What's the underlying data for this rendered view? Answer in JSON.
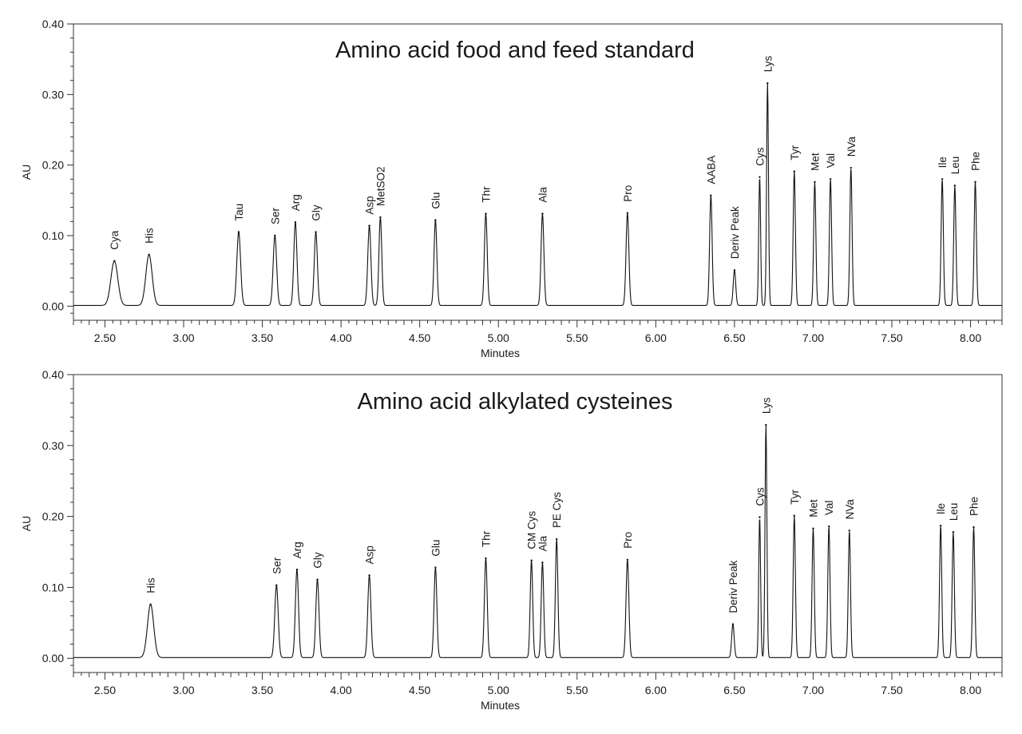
{
  "chart_data": [
    {
      "type": "line",
      "title": "Amino acid food and feed standard",
      "xlabel": "Minutes",
      "ylabel": "AU",
      "xlim": [
        2.3,
        8.2
      ],
      "ylim": [
        -0.02,
        0.4
      ],
      "xticks": [
        2.5,
        3.0,
        3.5,
        4.0,
        4.5,
        5.0,
        5.5,
        6.0,
        6.5,
        7.0,
        7.5,
        8.0
      ],
      "xtick_labels": [
        "2.50",
        "3.00",
        "3.50",
        "4.00",
        "4.50",
        "5.00",
        "5.50",
        "6.00",
        "6.50",
        "7.00",
        "7.50",
        "8.00"
      ],
      "yticks": [
        0.0,
        0.1,
        0.2,
        0.3,
        0.4
      ],
      "ytick_labels": [
        "0.00",
        "0.10",
        "0.20",
        "0.30",
        "0.40"
      ],
      "baseline": 0.001,
      "grid": false,
      "peaks": [
        {
          "name": "Cya",
          "x": 2.56,
          "y": 0.063,
          "w": 0.022
        },
        {
          "name": "His",
          "x": 2.78,
          "y": 0.072,
          "w": 0.02
        },
        {
          "name": "Tau",
          "x": 3.35,
          "y": 0.104,
          "w": 0.012
        },
        {
          "name": "Ser",
          "x": 3.58,
          "y": 0.099,
          "w": 0.011
        },
        {
          "name": "Arg",
          "x": 3.71,
          "y": 0.118,
          "w": 0.01
        },
        {
          "name": "Gly",
          "x": 3.84,
          "y": 0.104,
          "w": 0.01
        },
        {
          "name": "Asp",
          "x": 4.18,
          "y": 0.113,
          "w": 0.01
        },
        {
          "name": "MetSO2",
          "x": 4.25,
          "y": 0.125,
          "w": 0.009
        },
        {
          "name": "Glu",
          "x": 4.6,
          "y": 0.121,
          "w": 0.009
        },
        {
          "name": "Thr",
          "x": 4.92,
          "y": 0.13,
          "w": 0.009
        },
        {
          "name": "Ala",
          "x": 5.28,
          "y": 0.13,
          "w": 0.009
        },
        {
          "name": "Pro",
          "x": 5.82,
          "y": 0.131,
          "w": 0.009
        },
        {
          "name": "AABA",
          "x": 6.35,
          "y": 0.156,
          "w": 0.008
        },
        {
          "name": "Deriv Peak",
          "x": 6.5,
          "y": 0.05,
          "w": 0.008
        },
        {
          "name": "Cys",
          "x": 6.66,
          "y": 0.182,
          "w": 0.006
        },
        {
          "name": "Lys",
          "x": 6.71,
          "y": 0.315,
          "w": 0.006
        },
        {
          "name": "Tyr",
          "x": 6.88,
          "y": 0.19,
          "w": 0.007
        },
        {
          "name": "Met",
          "x": 7.01,
          "y": 0.175,
          "w": 0.007
        },
        {
          "name": "Val",
          "x": 7.11,
          "y": 0.179,
          "w": 0.007
        },
        {
          "name": "NVa",
          "x": 7.24,
          "y": 0.195,
          "w": 0.007
        },
        {
          "name": "Ile",
          "x": 7.82,
          "y": 0.179,
          "w": 0.007
        },
        {
          "name": "Leu",
          "x": 7.9,
          "y": 0.17,
          "w": 0.007
        },
        {
          "name": "Phe",
          "x": 8.03,
          "y": 0.175,
          "w": 0.007
        }
      ]
    },
    {
      "type": "line",
      "title": "Amino acid alkylated cysteines",
      "xlabel": "Minutes",
      "ylabel": "AU",
      "xlim": [
        2.3,
        8.2
      ],
      "ylim": [
        -0.02,
        0.4
      ],
      "xticks": [
        2.5,
        3.0,
        3.5,
        4.0,
        4.5,
        5.0,
        5.5,
        6.0,
        6.5,
        7.0,
        7.5,
        8.0
      ],
      "xtick_labels": [
        "2.50",
        "3.00",
        "3.50",
        "4.00",
        "4.50",
        "5.00",
        "5.50",
        "6.00",
        "6.50",
        "7.00",
        "7.50",
        "8.00"
      ],
      "yticks": [
        0.0,
        0.1,
        0.2,
        0.3,
        0.4
      ],
      "ytick_labels": [
        "0.00",
        "0.10",
        "0.20",
        "0.30",
        "0.40"
      ],
      "baseline": 0.001,
      "grid": false,
      "peaks": [
        {
          "name": "His",
          "x": 2.79,
          "y": 0.075,
          "w": 0.02
        },
        {
          "name": "Ser",
          "x": 3.59,
          "y": 0.102,
          "w": 0.011
        },
        {
          "name": "Arg",
          "x": 3.72,
          "y": 0.124,
          "w": 0.01
        },
        {
          "name": "Gly",
          "x": 3.85,
          "y": 0.11,
          "w": 0.01
        },
        {
          "name": "Asp",
          "x": 4.18,
          "y": 0.116,
          "w": 0.01
        },
        {
          "name": "Glu",
          "x": 4.6,
          "y": 0.127,
          "w": 0.009
        },
        {
          "name": "Thr",
          "x": 4.92,
          "y": 0.14,
          "w": 0.009
        },
        {
          "name": "CM Cys",
          "x": 5.21,
          "y": 0.137,
          "w": 0.008
        },
        {
          "name": "Ala",
          "x": 5.28,
          "y": 0.134,
          "w": 0.008
        },
        {
          "name": "PE Cys",
          "x": 5.37,
          "y": 0.167,
          "w": 0.008
        },
        {
          "name": "Pro",
          "x": 5.82,
          "y": 0.138,
          "w": 0.009
        },
        {
          "name": "Deriv Peak",
          "x": 6.49,
          "y": 0.047,
          "w": 0.008
        },
        {
          "name": "Cys",
          "x": 6.66,
          "y": 0.198,
          "w": 0.006
        },
        {
          "name": "Lys",
          "x": 6.7,
          "y": 0.328,
          "w": 0.006
        },
        {
          "name": "Tyr",
          "x": 6.88,
          "y": 0.2,
          "w": 0.007
        },
        {
          "name": "Met",
          "x": 7.0,
          "y": 0.182,
          "w": 0.007
        },
        {
          "name": "Val",
          "x": 7.1,
          "y": 0.185,
          "w": 0.007
        },
        {
          "name": "NVa",
          "x": 7.23,
          "y": 0.179,
          "w": 0.007
        },
        {
          "name": "Ile",
          "x": 7.81,
          "y": 0.186,
          "w": 0.007
        },
        {
          "name": "Leu",
          "x": 7.89,
          "y": 0.177,
          "w": 0.007
        },
        {
          "name": "Phe",
          "x": 8.02,
          "y": 0.184,
          "w": 0.007
        }
      ]
    }
  ]
}
